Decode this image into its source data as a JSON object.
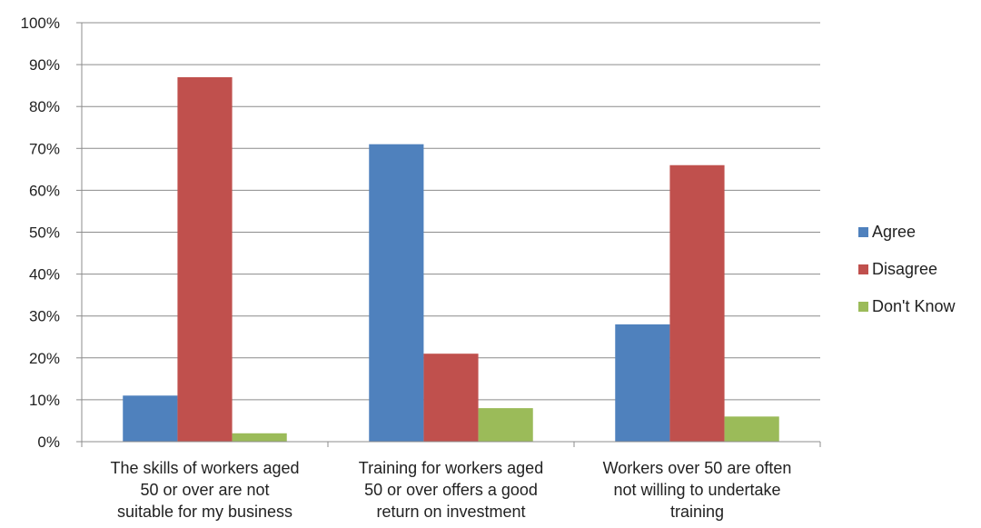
{
  "chart_data": {
    "type": "bar",
    "title": "",
    "xlabel": "",
    "ylabel": "",
    "categories": [
      [
        "The skills of workers aged",
        "50 or over are not",
        "suitable for my business"
      ],
      [
        "Training for workers aged",
        "50 or over offers a good",
        "return on investment"
      ],
      [
        "Workers over 50 are often",
        "not willing to undertake",
        "training"
      ]
    ],
    "series": [
      {
        "name": "Agree",
        "color": "#4f81bd",
        "values": [
          0.11,
          0.71,
          0.28
        ]
      },
      {
        "name": "Disagree",
        "color": "#c0504d",
        "values": [
          0.87,
          0.21,
          0.66
        ]
      },
      {
        "name": "Don't Know",
        "color": "#9bbb59",
        "values": [
          0.02,
          0.08,
          0.06
        ]
      }
    ],
    "ylim": [
      0,
      1
    ],
    "yticks": [
      "0%",
      "10%",
      "20%",
      "30%",
      "40%",
      "50%",
      "60%",
      "70%",
      "80%",
      "90%",
      "100%"
    ],
    "grid": true,
    "legend": "right"
  }
}
